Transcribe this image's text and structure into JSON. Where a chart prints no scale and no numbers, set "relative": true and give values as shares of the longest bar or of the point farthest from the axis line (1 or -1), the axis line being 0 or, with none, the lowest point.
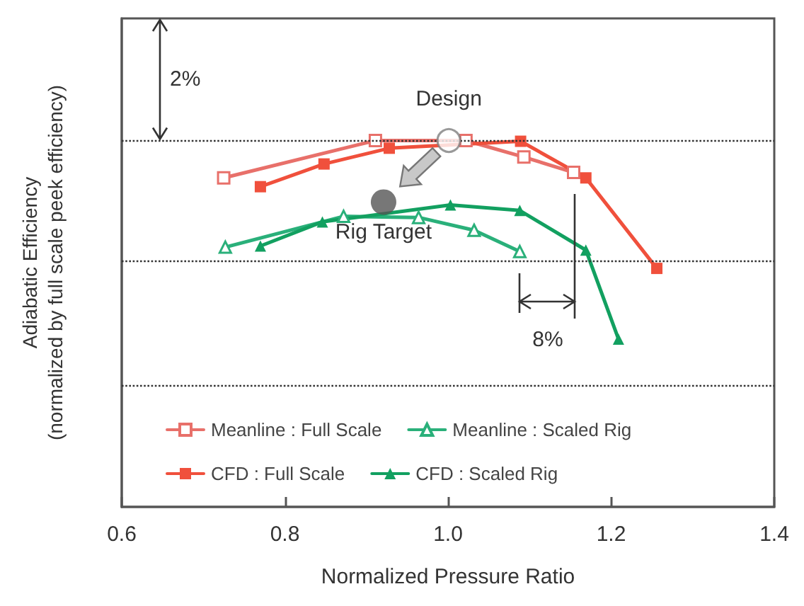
{
  "chart_data": {
    "type": "line",
    "xlabel": "Normalized Pressure Ratio",
    "ylabel": "Adiabatic Efficiency\n(normalized by full scale peek efficiency)",
    "relative": true,
    "xlim": [
      0.6,
      1.4
    ],
    "xticks": [
      0.6,
      0.8,
      {
        "value": 1.0,
        "label": "1.0"
      },
      1.2,
      1.4
    ],
    "ref_lines": [
      {
        "axis": "y",
        "value": 1.0,
        "line_style": "dotted"
      },
      {
        "axis": "y",
        "value": 0.667,
        "line_style": "dotted"
      },
      {
        "axis": "y",
        "value": 0.333,
        "line_style": "dotted"
      }
    ],
    "legend": "bottom",
    "line_style": "solid",
    "series": [
      {
        "name": "Meanline : Full Scale",
        "color": "#e8706a",
        "marker": "square",
        "x": [
          0.725,
          0.911,
          1.022,
          1.093,
          1.154
        ],
        "values": [
          0.898,
          1.0,
          1.0,
          0.955,
          0.913
        ]
      },
      {
        "name": "CFD : Full Scale",
        "color": "#f0503c",
        "marker": "square",
        "x": [
          0.77,
          0.848,
          0.928,
          1.001,
          1.089,
          1.169,
          1.256
        ],
        "values": [
          0.874,
          0.936,
          0.979,
          null,
          0.998,
          0.898,
          0.651
        ]
      },
      {
        "name": "Meanline : Scaled Rig",
        "color": "#2ab07a",
        "marker": "triangle",
        "x": [
          0.727,
          0.872,
          0.964,
          1.032,
          1.088
        ],
        "values": [
          0.709,
          0.793,
          0.79,
          0.755,
          0.697
        ]
      },
      {
        "name": "CFD : Scaled Rig",
        "color": "#12a060",
        "marker": "triangle",
        "x": [
          0.77,
          0.846,
          1.003,
          1.088,
          1.169,
          1.209
        ],
        "values": [
          0.712,
          0.778,
          0.824,
          0.809,
          0.701,
          0.458
        ]
      },
      {
        "type": "scatter",
        "color": "#808080",
        "marker": "circle",
        "x": [
          1.001
        ],
        "values": [
          1.0
        ]
      },
      {
        "type": "scatter",
        "color": "#555555",
        "marker": "circle",
        "x": [
          0.921
        ],
        "values": [
          0.832
        ]
      }
    ],
    "annotations": [
      {
        "text": "Design",
        "x": 1.001,
        "y": 1.0
      },
      {
        "text": "Rig Target",
        "x": 0.921,
        "y": 0.832
      },
      "2%",
      "8%"
    ]
  }
}
